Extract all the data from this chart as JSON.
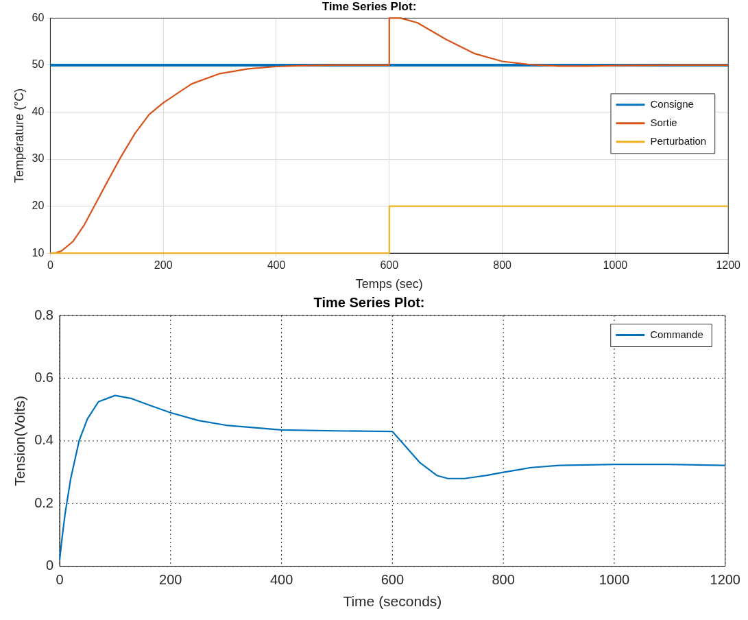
{
  "chart_data": [
    {
      "type": "line",
      "title": "Time Series Plot:",
      "xlabel": "Temps (sec)",
      "ylabel": "Température (°C)",
      "xlim": [
        0,
        1200
      ],
      "xticks": [
        0,
        200,
        400,
        600,
        800,
        1000,
        1200
      ],
      "ylim": [
        10,
        60
      ],
      "yticks": [
        10,
        20,
        30,
        40,
        50,
        60
      ],
      "grid": true,
      "legend": "right",
      "line_style": "solid",
      "marker": "none",
      "series": [
        {
          "name": "Consigne",
          "color": "#0072bd",
          "x": [
            0,
            1200
          ],
          "values": [
            50,
            50
          ]
        },
        {
          "name": "Sortie",
          "color": "#d95319",
          "x": [
            0,
            10,
            20,
            40,
            60,
            80,
            100,
            125,
            150,
            175,
            200,
            250,
            300,
            350,
            400,
            450,
            500,
            600,
            600,
            620,
            650,
            700,
            750,
            800,
            850,
            900,
            950,
            1000,
            1100,
            1200
          ],
          "values": [
            10,
            10.1,
            10.5,
            12.5,
            16,
            20.5,
            25,
            30.5,
            35.5,
            39.5,
            42,
            46,
            48.2,
            49.2,
            49.7,
            49.9,
            50,
            50,
            60,
            60,
            59,
            55.5,
            52.5,
            50.8,
            50.1,
            49.8,
            49.8,
            49.9,
            50,
            50
          ]
        },
        {
          "name": "Perturbation",
          "color": "#edb120",
          "x": [
            0,
            600,
            600,
            1200
          ],
          "values": [
            10,
            10,
            20,
            20
          ]
        }
      ]
    },
    {
      "type": "line",
      "title": "Time Series Plot:",
      "xlabel": "Time (seconds)",
      "ylabel": "Tension(Volts)",
      "xlim": [
        0,
        1200
      ],
      "xticks": [
        0,
        200,
        400,
        600,
        800,
        1000,
        1200
      ],
      "ylim": [
        0,
        0.8
      ],
      "yticks": [
        0,
        0.2,
        0.4,
        0.6,
        0.8
      ],
      "grid": true,
      "legend": "top right",
      "line_style": "solid",
      "marker": "none",
      "series": [
        {
          "name": "Commande",
          "color": "#0072bd",
          "x": [
            0,
            5,
            10,
            20,
            35,
            50,
            70,
            100,
            130,
            160,
            200,
            250,
            300,
            400,
            500,
            600,
            620,
            650,
            680,
            700,
            730,
            770,
            800,
            850,
            900,
            1000,
            1100,
            1200
          ],
          "values": [
            0.02,
            0.1,
            0.17,
            0.28,
            0.4,
            0.47,
            0.525,
            0.545,
            0.535,
            0.515,
            0.49,
            0.465,
            0.45,
            0.435,
            0.432,
            0.43,
            0.39,
            0.33,
            0.29,
            0.28,
            0.28,
            0.29,
            0.3,
            0.315,
            0.322,
            0.325,
            0.325,
            0.322
          ]
        }
      ]
    }
  ]
}
